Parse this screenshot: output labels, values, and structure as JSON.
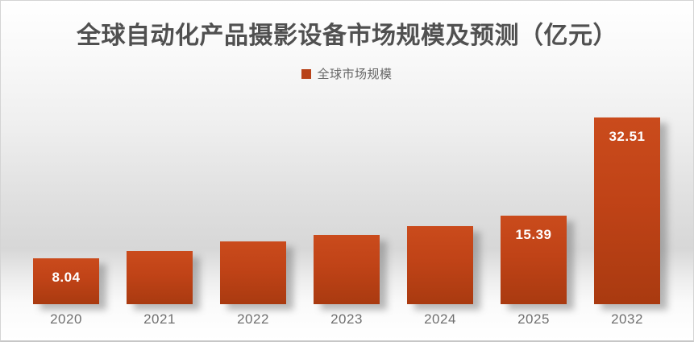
{
  "chart": {
    "title": "全球自动化产品摄影设备市场规模及预测（亿元）",
    "legend": [
      {
        "label": "全球市场规模",
        "swatch_color": "#b8431a"
      }
    ]
  },
  "chart_data": {
    "type": "bar",
    "title": "全球自动化产品摄影设备市场规模及预测（亿元）",
    "unit": "亿元",
    "categories": [
      "2020",
      "2021",
      "2022",
      "2023",
      "2024",
      "2025",
      "2032"
    ],
    "series": [
      {
        "name": "全球市场规模",
        "values": [
          8.04,
          9.2,
          10.9,
          12.0,
          13.6,
          15.39,
          32.51
        ]
      }
    ],
    "visible_data_labels": [
      "8.04",
      "",
      "",
      "",
      "",
      "15.39",
      "32.51"
    ],
    "xlabel": "",
    "ylabel": "",
    "ylim": [
      0,
      33
    ],
    "grid": false,
    "axes_hidden": true,
    "legend_position": "top-center",
    "note": "values for 2021-2024 estimated from bar heights; only 2020, 2025, 2032 carry data labels"
  },
  "colors": {
    "bar_gradient_top": "#ca4b1c",
    "bar_gradient_bottom": "#a93a10",
    "legend_swatch": "#b8431a",
    "title_text": "#505050",
    "axis_text": "#6f6f6f",
    "data_label_text": "#ffffff",
    "background_mid_gray": "#d7d7d7"
  }
}
